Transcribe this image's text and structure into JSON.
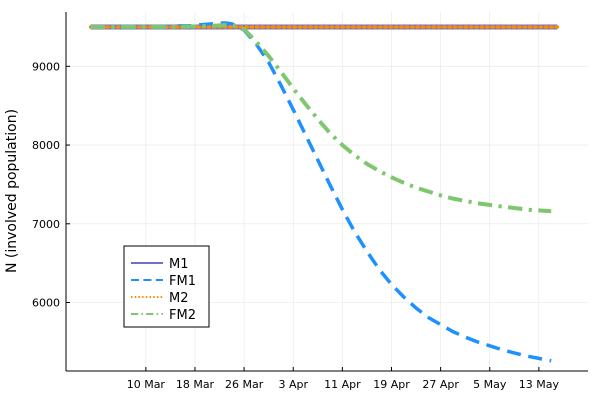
{
  "chart_data": {
    "type": "line",
    "title": "",
    "xlabel": "",
    "ylabel": "N (involved population)",
    "x_ticks": [
      {
        "label": "10 Mar",
        "day": 9
      },
      {
        "label": "18 Mar",
        "day": 17
      },
      {
        "label": "26 Mar",
        "day": 25
      },
      {
        "label": "3 Apr",
        "day": 33
      },
      {
        "label": "11 Apr",
        "day": 41
      },
      {
        "label": "19 Apr",
        "day": 49
      },
      {
        "label": "27 Apr",
        "day": 57
      },
      {
        "label": "5 May",
        "day": 65
      },
      {
        "label": "13 May",
        "day": 73
      }
    ],
    "y_ticks": [
      6000,
      7000,
      8000,
      9000
    ],
    "xlim": [
      -4,
      81
    ],
    "ylim": [
      5130,
      9690
    ],
    "grid": true,
    "legend_position": "bottom-left",
    "series": [
      {
        "name": "M1",
        "color": "#6b6fd0",
        "style": "solid",
        "width": 5,
        "points": [
          [
            0,
            9500
          ],
          [
            76,
            9500
          ]
        ]
      },
      {
        "name": "FM1",
        "color": "#1e90ff",
        "style": "dashed",
        "width": 3.5,
        "points": [
          [
            0,
            9500
          ],
          [
            10,
            9505
          ],
          [
            16,
            9515
          ],
          [
            19,
            9535
          ],
          [
            21,
            9548
          ],
          [
            22,
            9550
          ],
          [
            23,
            9540
          ],
          [
            24,
            9505
          ],
          [
            25,
            9460
          ],
          [
            27,
            9280
          ],
          [
            29,
            9050
          ],
          [
            31,
            8760
          ],
          [
            33,
            8450
          ],
          [
            35,
            8130
          ],
          [
            37,
            7810
          ],
          [
            39,
            7490
          ],
          [
            41,
            7180
          ],
          [
            43,
            6900
          ],
          [
            45,
            6650
          ],
          [
            47,
            6420
          ],
          [
            49,
            6230
          ],
          [
            51,
            6070
          ],
          [
            53,
            5930
          ],
          [
            55,
            5810
          ],
          [
            57,
            5720
          ],
          [
            59,
            5630
          ],
          [
            61,
            5560
          ],
          [
            63,
            5500
          ],
          [
            65,
            5450
          ],
          [
            67,
            5400
          ],
          [
            69,
            5360
          ],
          [
            71,
            5320
          ],
          [
            73,
            5290
          ],
          [
            75,
            5260
          ]
        ]
      },
      {
        "name": "M2",
        "color": "#ff8c00",
        "style": "dotted",
        "width": 3.5,
        "points": [
          [
            0,
            9500
          ],
          [
            76,
            9500
          ]
        ]
      },
      {
        "name": "FM2",
        "color": "#7ec76e",
        "style": "dashdot",
        "width": 4,
        "points": [
          [
            0,
            9500
          ],
          [
            15,
            9502
          ],
          [
            20,
            9515
          ],
          [
            23,
            9530
          ],
          [
            25,
            9470
          ],
          [
            27,
            9310
          ],
          [
            29,
            9130
          ],
          [
            31,
            8930
          ],
          [
            33,
            8720
          ],
          [
            35,
            8520
          ],
          [
            37,
            8330
          ],
          [
            39,
            8150
          ],
          [
            41,
            8000
          ],
          [
            43,
            7870
          ],
          [
            45,
            7760
          ],
          [
            47,
            7670
          ],
          [
            49,
            7590
          ],
          [
            51,
            7520
          ],
          [
            53,
            7460
          ],
          [
            55,
            7410
          ],
          [
            57,
            7360
          ],
          [
            59,
            7320
          ],
          [
            61,
            7290
          ],
          [
            63,
            7260
          ],
          [
            65,
            7240
          ],
          [
            67,
            7220
          ],
          [
            69,
            7200
          ],
          [
            71,
            7180
          ],
          [
            73,
            7170
          ],
          [
            75,
            7160
          ]
        ]
      }
    ]
  }
}
